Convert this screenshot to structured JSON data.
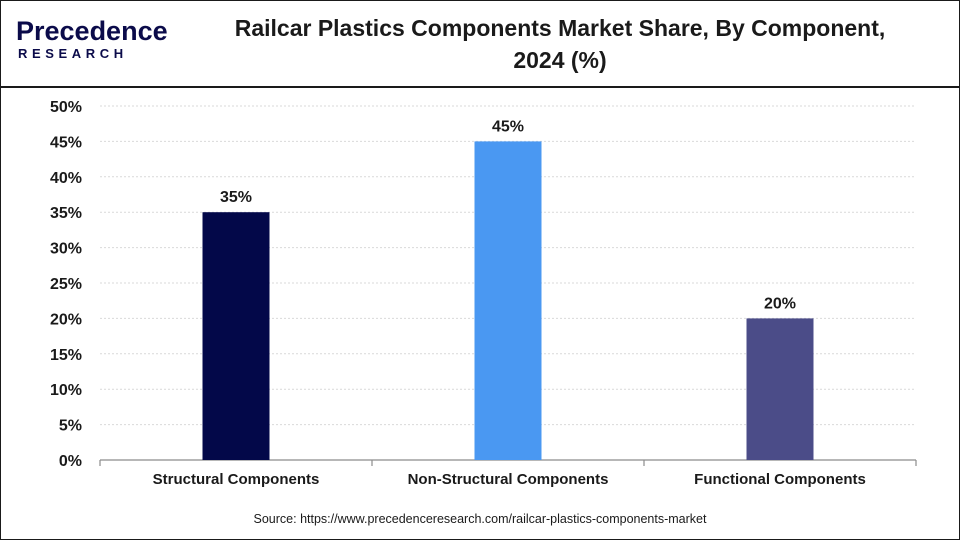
{
  "header": {
    "logo_text_main": "Precedence",
    "logo_text_sub": "RESEARCH"
  },
  "chart_data": {
    "type": "bar",
    "title_line1": "Railcar Plastics Components Market Share, By Component,",
    "title_line2": "2024 (%)",
    "categories": [
      "Structural Components",
      "Non-Structural Components",
      "Functional Components"
    ],
    "values": [
      35,
      45,
      20
    ],
    "data_labels": [
      "35%",
      "45%",
      "20%"
    ],
    "colors": [
      "#030849",
      "#4a98f2",
      "#4b4c88"
    ],
    "ylim": [
      0,
      50
    ],
    "yticks": [
      0,
      5,
      10,
      15,
      20,
      25,
      30,
      35,
      40,
      45,
      50
    ],
    "ytick_labels": [
      "0%",
      "5%",
      "10%",
      "15%",
      "20%",
      "25%",
      "30%",
      "35%",
      "40%",
      "45%",
      "50%"
    ],
    "xlabel": "",
    "ylabel": "",
    "grid": true,
    "legend": "none"
  },
  "footer": {
    "source": "Source: https://www.precedenceresearch.com/railcar-plastics-components-market"
  }
}
